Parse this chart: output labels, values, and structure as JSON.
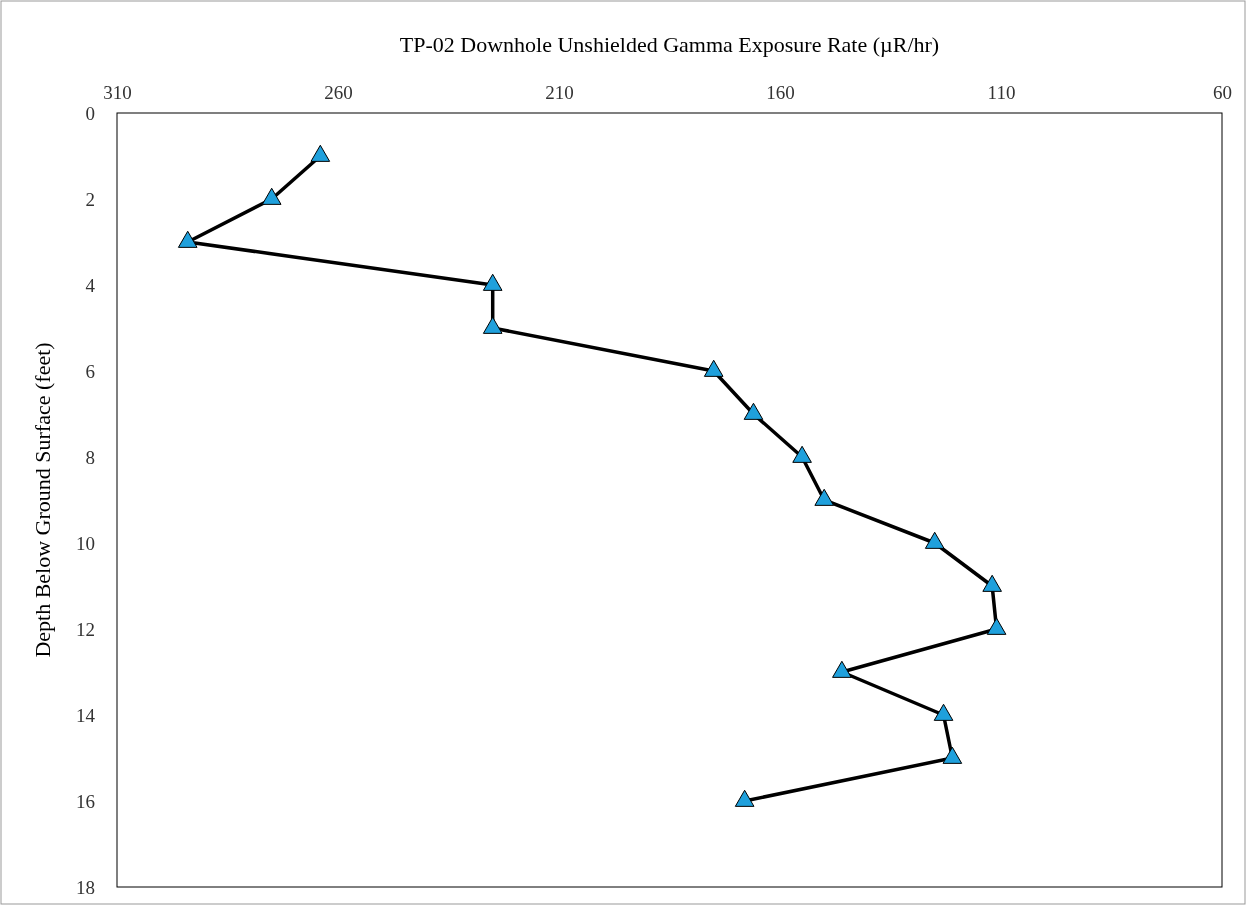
{
  "chart_data": {
    "type": "line",
    "xlabel": "TP-02 Downhole Unshielded Gamma Exposure Rate (µR/hr)",
    "ylabel": "Depth Below Ground Surface (feet)",
    "xlim": [
      310,
      60
    ],
    "xticks": [
      310,
      260,
      210,
      160,
      110,
      60
    ],
    "ylim": [
      18,
      0
    ],
    "yticks": [
      0,
      2,
      4,
      6,
      8,
      10,
      12,
      14,
      16,
      18
    ],
    "marker": "triangle",
    "line_style": "solid",
    "grid": false,
    "series": [
      {
        "color": "#000000",
        "colors": [
          "#1fa0dc",
          "#1fa0dc",
          "#1fa0dc",
          "#1fa0dc",
          "#1fa0dc",
          "#1fa0dc",
          "#1fa0dc",
          "#1fa0dc",
          "#1fa0dc",
          "#1fa0dc",
          "#1fa0dc",
          "#1fa0dc",
          "#1fa0dc",
          "#1fa0dc",
          "#1fa0dc",
          "#1fa0dc"
        ],
        "x": [
          264,
          275,
          294,
          225,
          225,
          175,
          166,
          155,
          150,
          125,
          112,
          111,
          146,
          123,
          121,
          168
        ],
        "values": [
          1,
          2,
          3,
          4,
          5,
          6,
          7,
          8,
          9,
          10,
          11,
          12,
          13,
          14,
          15,
          16
        ]
      }
    ]
  }
}
